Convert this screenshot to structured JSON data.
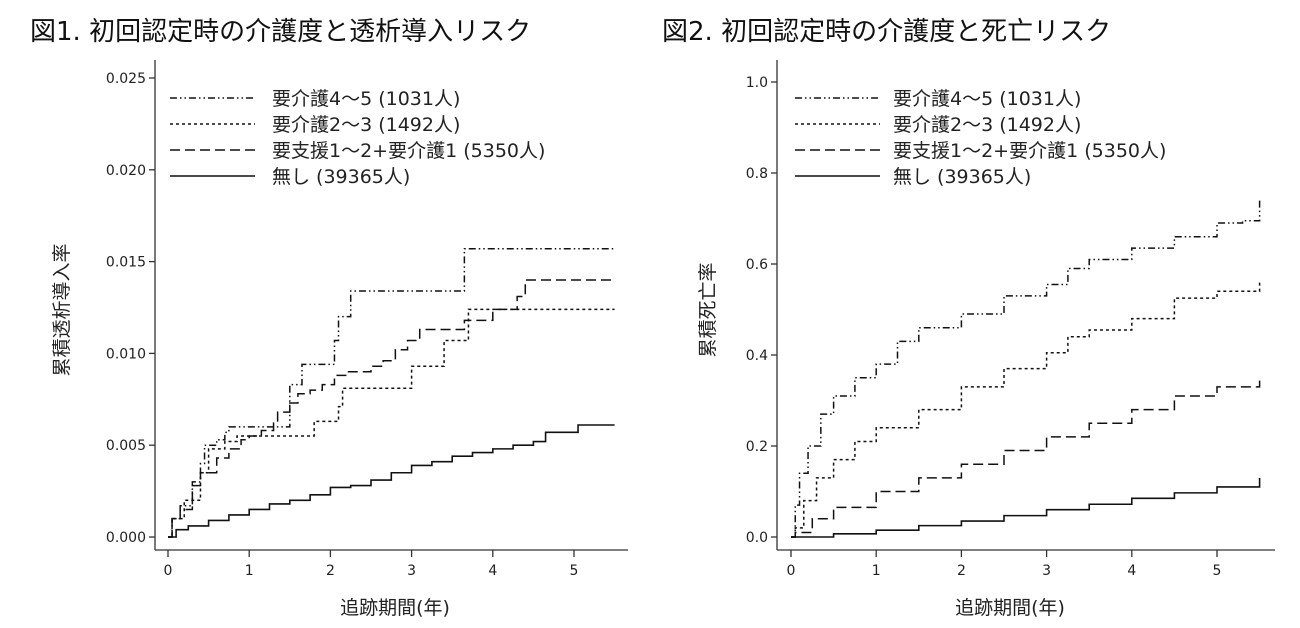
{
  "chart_data": [
    {
      "type": "line",
      "step": true,
      "title": "図1. 初回認定時の介護度と透析導入リスク",
      "xlabel": "追跡期間(年)",
      "ylabel": "累積透析導入率",
      "xlim": [
        0,
        5.5
      ],
      "ylim": [
        0,
        0.025
      ],
      "xticks": [
        "0",
        "1",
        "2",
        "3",
        "4",
        "5"
      ],
      "yticks": [
        "0.000",
        "0.005",
        "0.010",
        "0.015",
        "0.020",
        "0.025"
      ],
      "grid": false,
      "legend_position": "top-left",
      "series": [
        {
          "name": "要介護4～5 (1031人)",
          "style": "dash-dot-dot",
          "x": [
            0,
            0.05,
            0.15,
            0.3,
            0.4,
            0.45,
            0.6,
            0.7,
            0.75,
            1.5,
            1.65,
            1.9,
            2.05,
            2.1,
            2.25,
            3.65,
            5.5
          ],
          "y": [
            0,
            0.001,
            0.0017,
            0.003,
            0.004,
            0.005,
            0.0053,
            0.0057,
            0.006,
            0.0083,
            0.0094,
            0.0094,
            0.0107,
            0.012,
            0.0134,
            0.0157,
            0.0157
          ]
        },
        {
          "name": "要介護2～3 (1492人)",
          "style": "dotted",
          "x": [
            0,
            0.05,
            0.2,
            0.4,
            0.5,
            0.7,
            0.85,
            1.8,
            2.1,
            2.15,
            3.0,
            3.4,
            3.7,
            5.5
          ],
          "y": [
            0,
            0.001,
            0.002,
            0.0035,
            0.0048,
            0.0052,
            0.0055,
            0.0063,
            0.0071,
            0.0081,
            0.0093,
            0.0107,
            0.0124,
            0.0124
          ]
        },
        {
          "name": "要支援1～2+要介護1 (5350人)",
          "style": "dashed",
          "x": [
            0,
            0.05,
            0.15,
            0.3,
            0.4,
            0.6,
            0.75,
            0.9,
            1.0,
            1.15,
            1.3,
            1.35,
            1.5,
            1.6,
            1.75,
            1.9,
            2.05,
            2.2,
            2.5,
            2.65,
            2.8,
            2.95,
            3.1,
            3.5,
            3.65,
            4.0,
            4.3,
            4.4,
            5.5
          ],
          "y": [
            0,
            0.001,
            0.0015,
            0.0028,
            0.0035,
            0.0043,
            0.0048,
            0.0053,
            0.0055,
            0.0058,
            0.0062,
            0.0068,
            0.0073,
            0.0078,
            0.008,
            0.0083,
            0.0088,
            0.009,
            0.0093,
            0.0096,
            0.0102,
            0.0107,
            0.0113,
            0.0113,
            0.0118,
            0.0124,
            0.0131,
            0.014,
            0.014
          ]
        },
        {
          "name": "無し (39365人)",
          "style": "solid",
          "x": [
            0,
            0.1,
            0.25,
            0.5,
            0.75,
            1,
            1.25,
            1.5,
            1.75,
            2,
            2.25,
            2.5,
            2.75,
            3,
            3.25,
            3.5,
            3.75,
            4,
            4.25,
            4.5,
            4.65,
            5.05,
            5.5
          ],
          "y": [
            0,
            0.0004,
            0.0006,
            0.0009,
            0.0012,
            0.0015,
            0.0018,
            0.002,
            0.0023,
            0.0027,
            0.0028,
            0.0031,
            0.0035,
            0.0039,
            0.0041,
            0.0044,
            0.0046,
            0.0048,
            0.005,
            0.0052,
            0.0057,
            0.0061,
            0.0061
          ]
        }
      ]
    },
    {
      "type": "line",
      "step": true,
      "title": "図2. 初回認定時の介護度と死亡リスク",
      "xlabel": "追跡期間(年)",
      "ylabel": "累積死亡率",
      "xlim": [
        0,
        5.5
      ],
      "ylim": [
        0,
        1.0
      ],
      "xticks": [
        "0",
        "1",
        "2",
        "3",
        "4",
        "5"
      ],
      "yticks": [
        "0.0",
        "0.2",
        "0.4",
        "0.6",
        "0.8",
        "1.0"
      ],
      "grid": false,
      "legend_position": "top-left",
      "series": [
        {
          "name": "要介護4～5 (1031人)",
          "style": "dash-dot-dot",
          "x": [
            0,
            0.05,
            0.1,
            0.2,
            0.35,
            0.5,
            0.75,
            1,
            1.25,
            1.5,
            2,
            2.5,
            3,
            3.25,
            3.5,
            4,
            4.5,
            5,
            5.3,
            5.5
          ],
          "y": [
            0,
            0.07,
            0.14,
            0.2,
            0.27,
            0.31,
            0.35,
            0.38,
            0.43,
            0.46,
            0.49,
            0.53,
            0.555,
            0.59,
            0.61,
            0.635,
            0.66,
            0.69,
            0.695,
            0.74
          ]
        },
        {
          "name": "要介護2～3 (1492人)",
          "style": "dotted",
          "x": [
            0,
            0.05,
            0.15,
            0.3,
            0.5,
            0.75,
            1,
            1.5,
            2,
            2.5,
            3,
            3.25,
            3.5,
            4,
            4.5,
            5,
            5.5
          ],
          "y": [
            0,
            0.02,
            0.08,
            0.13,
            0.17,
            0.21,
            0.24,
            0.28,
            0.33,
            0.37,
            0.405,
            0.44,
            0.455,
            0.48,
            0.525,
            0.54,
            0.565
          ]
        },
        {
          "name": "要支援1～2+要介護1 (5350人)",
          "style": "dashed",
          "x": [
            0,
            0.05,
            0.25,
            0.5,
            1,
            1.5,
            2,
            2.5,
            3,
            3.5,
            4,
            4.5,
            5,
            5.5
          ],
          "y": [
            0,
            0.01,
            0.04,
            0.065,
            0.1,
            0.13,
            0.16,
            0.19,
            0.22,
            0.25,
            0.28,
            0.31,
            0.33,
            0.35
          ]
        },
        {
          "name": "無し (39365人)",
          "style": "solid",
          "x": [
            0,
            0.5,
            1,
            1.5,
            2,
            2.5,
            3,
            3.5,
            4,
            4.5,
            5,
            5.5
          ],
          "y": [
            0,
            0.007,
            0.015,
            0.025,
            0.035,
            0.047,
            0.06,
            0.072,
            0.085,
            0.097,
            0.11,
            0.13
          ]
        }
      ]
    }
  ]
}
